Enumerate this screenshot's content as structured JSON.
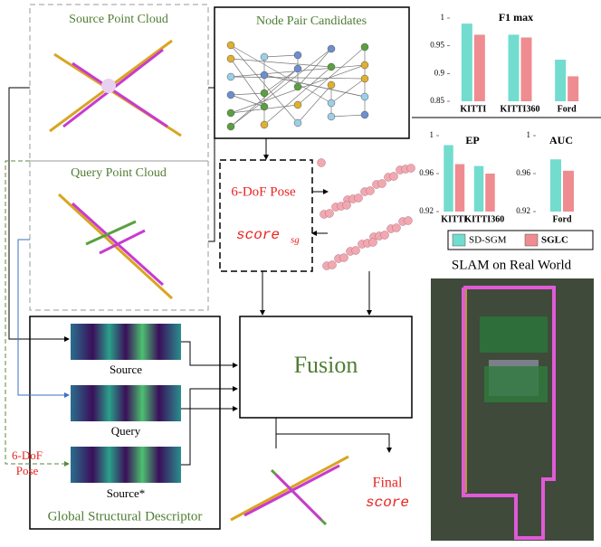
{
  "source_label": "Source Point Cloud",
  "node_pair_label": "Node Pair Candidates",
  "query_label": "Query Point Cloud",
  "pose_label": "6-DoF Pose",
  "score_label": "score",
  "score_sub": "sg",
  "fusion_label": "Fusion",
  "descriptor": {
    "source": "Source",
    "query": "Query",
    "source_star": "Source*",
    "pose": [
      "6-DoF",
      "Pose"
    ],
    "title": "Global Structural Descriptor"
  },
  "final_label": [
    "Final",
    "score"
  ],
  "slam_label": "SLAM on Real World",
  "legend": [
    {
      "name": "SD-SGM",
      "color": "#72dccf"
    },
    {
      "name": "SGLC",
      "color": "#ef8c92"
    }
  ],
  "charts": [
    {
      "type": "bar",
      "title": "F1 max",
      "categories": [
        "KITTI",
        "KITTI360",
        "Ford"
      ],
      "series": [
        {
          "values": [
            0.99,
            0.97,
            0.925
          ]
        },
        {
          "values": [
            0.97,
            0.965,
            0.895
          ]
        }
      ],
      "ylim": [
        0.85,
        1
      ],
      "yticks": [
        0.85,
        0.9,
        0.95,
        1
      ]
    },
    {
      "type": "bar",
      "title": "EP",
      "categories": [
        "KITTI",
        "KITTI360"
      ],
      "series": [
        {
          "values": [
            0.99,
            0.968
          ]
        },
        {
          "values": [
            0.97,
            0.96
          ]
        }
      ],
      "ylim": [
        0.92,
        1
      ],
      "yticks": [
        0.92,
        0.96,
        1
      ]
    },
    {
      "type": "bar",
      "title": "AUC",
      "categories": [
        "Ford"
      ],
      "series": [
        {
          "values": [
            0.975
          ]
        },
        {
          "values": [
            0.963
          ]
        }
      ],
      "ylim": [
        0.92,
        1
      ],
      "yticks": [
        0.92,
        0.96,
        1
      ]
    }
  ]
}
